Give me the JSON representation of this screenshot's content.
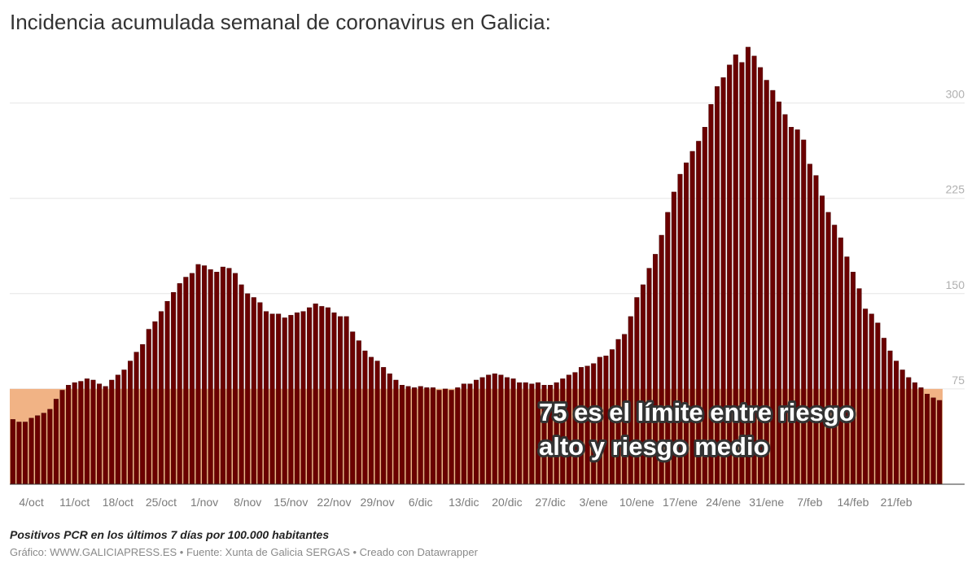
{
  "page": {
    "title": "Incidencia acumulada semanal de coronavirus en Galicia:",
    "subtitle_note": "Positivos PCR en los últimos 7 días por 100.000 habitantes",
    "footer": {
      "grafico_label": "Gráfico:",
      "grafico": "WWW.GALICIAPRESS.ES",
      "fuente_label": "Fuente:",
      "fuente": "Xunta de Galicia SERGAS",
      "creado": "Creado con Datawrapper",
      "separator": " • "
    }
  },
  "colors": {
    "bar": "#6b0000",
    "bar_edge": "#3a0000",
    "band": "#f1b385",
    "grid": "#e6e6e6",
    "axis": "#333333"
  },
  "chart_data": {
    "type": "bar",
    "title": "Incidencia acumulada semanal de coronavirus en Galicia:",
    "ylabel": "Positivos PCR en los últimos 7 días por 100.000 habitantes",
    "ylim": [
      0,
      345
    ],
    "yticks": [
      75,
      150,
      225,
      300
    ],
    "grid": true,
    "reference_band": {
      "from": 0,
      "to": 75
    },
    "annotation": {
      "lines": [
        "75 es el límite entre riesgo",
        "alto y riesgo medio"
      ],
      "anchor_date": "2021-01-07"
    },
    "start_date": "2020-10-01",
    "x_tick_labels": [
      {
        "label": "4/oct",
        "index": 3
      },
      {
        "label": "11/oct",
        "index": 10
      },
      {
        "label": "18/oct",
        "index": 17
      },
      {
        "label": "25/oct",
        "index": 24
      },
      {
        "label": "1/nov",
        "index": 31
      },
      {
        "label": "8/nov",
        "index": 38
      },
      {
        "label": "15/nov",
        "index": 45
      },
      {
        "label": "22/nov",
        "index": 52
      },
      {
        "label": "29/nov",
        "index": 59
      },
      {
        "label": "6/dic",
        "index": 66
      },
      {
        "label": "13/dic",
        "index": 73
      },
      {
        "label": "20/dic",
        "index": 80
      },
      {
        "label": "27/dic",
        "index": 87
      },
      {
        "label": "3/ene",
        "index": 94
      },
      {
        "label": "10/ene",
        "index": 101
      },
      {
        "label": "17/ene",
        "index": 108
      },
      {
        "label": "24/ene",
        "index": 115
      },
      {
        "label": "31/ene",
        "index": 122
      },
      {
        "label": "7/feb",
        "index": 129
      },
      {
        "label": "14/feb",
        "index": 136
      },
      {
        "label": "21/feb",
        "index": 143
      }
    ],
    "values": [
      51,
      49,
      49,
      52,
      54,
      56,
      59,
      67,
      74,
      78,
      80,
      81,
      83,
      82,
      79,
      77,
      82,
      86,
      90,
      97,
      104,
      110,
      122,
      128,
      136,
      144,
      151,
      158,
      163,
      166,
      173,
      172,
      169,
      167,
      171,
      170,
      166,
      157,
      150,
      147,
      143,
      136,
      134,
      134,
      131,
      133,
      135,
      136,
      139,
      142,
      140,
      139,
      135,
      132,
      132,
      120,
      113,
      105,
      100,
      97,
      92,
      87,
      82,
      78,
      77,
      76,
      77,
      76,
      76,
      74,
      75,
      74,
      76,
      79,
      79,
      82,
      84,
      86,
      87,
      86,
      84,
      83,
      80,
      80,
      79,
      80,
      78,
      78,
      80,
      83,
      86,
      88,
      92,
      93,
      95,
      100,
      101,
      106,
      114,
      118,
      132,
      147,
      157,
      170,
      181,
      196,
      214,
      230,
      244,
      253,
      262,
      270,
      281,
      299,
      313,
      320,
      330,
      338,
      332,
      344,
      337,
      328,
      318,
      310,
      301,
      291,
      281,
      279,
      271,
      252,
      243,
      227,
      214,
      204,
      194,
      179,
      167,
      154,
      138,
      134,
      127,
      115,
      105,
      97,
      90,
      84,
      80,
      76,
      71,
      68,
      66
    ]
  }
}
